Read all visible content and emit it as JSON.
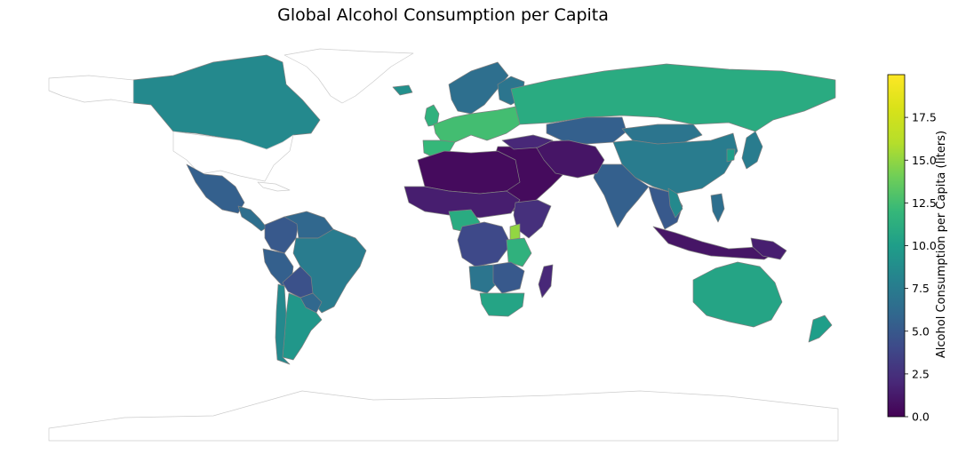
{
  "title": "Global Alcohol Consumption per Capita",
  "colorbar": {
    "label": "Alcohol Consumption per Capita (liters)",
    "min": 0.0,
    "max": 20.0,
    "colormap": "viridis",
    "ticks": [
      0.0,
      2.5,
      5.0,
      7.5,
      10.0,
      12.5,
      15.0,
      17.5
    ],
    "tick_labels": [
      "0.0",
      "2.5",
      "5.0",
      "7.5",
      "10.0",
      "12.5",
      "15.0",
      "17.5"
    ]
  },
  "colors": {
    "country_edge": "#808080",
    "no_data_fill": "#ffffff",
    "no_data_edge": "#cccccc"
  },
  "chart_data": {
    "type": "choropleth",
    "title": "Global Alcohol Consumption per Capita",
    "value_label": "Alcohol Consumption per Capita (liters)",
    "range": [
      0,
      20
    ],
    "regions": [
      {
        "name": "Greenland",
        "value": null
      },
      {
        "name": "Canada",
        "value": 8.5
      },
      {
        "name": "Alaska (USA)",
        "value": null
      },
      {
        "name": "United States",
        "value": null
      },
      {
        "name": "Mexico",
        "value": 5.5
      },
      {
        "name": "Central America",
        "value": 6.5
      },
      {
        "name": "Cuba",
        "value": null
      },
      {
        "name": "Colombia",
        "value": 5.0
      },
      {
        "name": "Venezuela",
        "value": 6.0
      },
      {
        "name": "Brazil",
        "value": 7.5
      },
      {
        "name": "Peru",
        "value": 5.5
      },
      {
        "name": "Bolivia",
        "value": 4.5
      },
      {
        "name": "Paraguay",
        "value": 6.0
      },
      {
        "name": "Argentina",
        "value": 9.5
      },
      {
        "name": "Chile",
        "value": 8.5
      },
      {
        "name": "Iceland",
        "value": 9.0
      },
      {
        "name": "Scandinavia",
        "value": 6.5
      },
      {
        "name": "Finland",
        "value": 7.0
      },
      {
        "name": "United Kingdom",
        "value": 11.5
      },
      {
        "name": "Western Europe",
        "value": 12.5
      },
      {
        "name": "Spain / Portugal",
        "value": 12.0
      },
      {
        "name": "Russia",
        "value": 11.0
      },
      {
        "name": "Kazakhstan",
        "value": 5.5
      },
      {
        "name": "Mongolia",
        "value": 7.0
      },
      {
        "name": "China",
        "value": 7.5
      },
      {
        "name": "Japan",
        "value": 7.5
      },
      {
        "name": "South Korea",
        "value": 10.0
      },
      {
        "name": "India",
        "value": 5.5
      },
      {
        "name": "Middle East",
        "value": 0.5
      },
      {
        "name": "Iran / Afghanistan / Pakistan",
        "value": 1.0
      },
      {
        "name": "Turkey",
        "value": 2.0
      },
      {
        "name": "Southeast Asia",
        "value": 5.0
      },
      {
        "name": "Vietnam",
        "value": 8.5
      },
      {
        "name": "Indonesia",
        "value": 1.0
      },
      {
        "name": "Papua New Guinea",
        "value": 1.5
      },
      {
        "name": "Philippines",
        "value": 6.5
      },
      {
        "name": "Australia",
        "value": 10.5
      },
      {
        "name": "New Zealand",
        "value": 10.0
      },
      {
        "name": "North Africa / Sahara",
        "value": 0.5
      },
      {
        "name": "Sahel",
        "value": 1.5
      },
      {
        "name": "Nigeria",
        "value": 11.0
      },
      {
        "name": "Central Africa",
        "value": 4.0
      },
      {
        "name": "Ethiopia / Somalia",
        "value": 2.5
      },
      {
        "name": "Uganda",
        "value": 15.0
      },
      {
        "name": "Tanzania",
        "value": 11.5
      },
      {
        "name": "Angola",
        "value": 7.0
      },
      {
        "name": "Zambia / Zimbabwe",
        "value": 5.0
      },
      {
        "name": "South Africa",
        "value": 10.5
      },
      {
        "name": "Madagascar",
        "value": 2.0
      },
      {
        "name": "Antarctica",
        "value": null
      }
    ]
  }
}
